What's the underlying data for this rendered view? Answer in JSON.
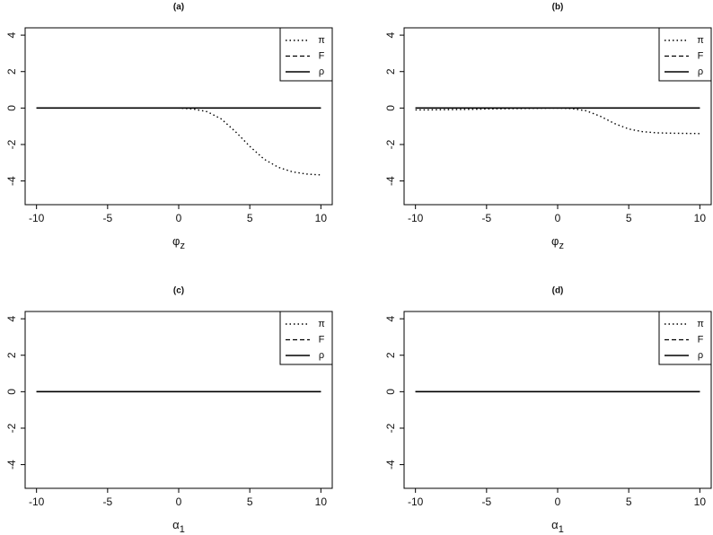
{
  "chart_data": [
    {
      "type": "line",
      "title": "(a)",
      "xlabel": [
        "φ",
        "z"
      ],
      "x": [
        -10,
        -9,
        -8,
        -7,
        -6,
        -5,
        -4,
        -3,
        -2,
        -1,
        0,
        1,
        2,
        3,
        4,
        5,
        6,
        7,
        8,
        9,
        10
      ],
      "series": [
        {
          "name": "π",
          "color": "#000000",
          "linestyle": "dotted",
          "values": [
            0,
            0,
            0,
            0,
            0,
            0,
            0,
            0,
            0,
            0,
            0,
            -0.05,
            -0.2,
            -0.6,
            -1.3,
            -2.1,
            -2.8,
            -3.25,
            -3.5,
            -3.62,
            -3.67
          ]
        },
        {
          "name": "F",
          "color": "#000000",
          "linestyle": "dashed",
          "values": [
            0,
            0,
            0,
            0,
            0,
            0,
            0,
            0,
            0,
            0,
            0,
            0,
            0,
            0,
            0,
            0,
            0,
            0,
            0,
            0,
            0
          ]
        },
        {
          "name": "ρ",
          "color": "#000000",
          "linestyle": "solid",
          "values": [
            0,
            0,
            0,
            0,
            0,
            0,
            0,
            0,
            0,
            0,
            0,
            0,
            0,
            0,
            0,
            0,
            0,
            0,
            0,
            0,
            0
          ]
        }
      ],
      "xlim": [
        -10.8,
        10.8
      ],
      "xticks": [
        -10,
        -5,
        0,
        5,
        10
      ],
      "ylim": [
        -5.3,
        4.4
      ],
      "yticks": [
        -4,
        -2,
        0,
        2,
        4
      ],
      "legend": "topright"
    },
    {
      "type": "line",
      "title": "(b)",
      "xlabel": [
        "φ",
        "z"
      ],
      "x": [
        -10,
        -9,
        -8,
        -7,
        -6,
        -5,
        -4,
        -3,
        -2,
        -1,
        0,
        1,
        2,
        3,
        4,
        5,
        6,
        7,
        8,
        9,
        10
      ],
      "series": [
        {
          "name": "π",
          "color": "#000000",
          "linestyle": "dotted",
          "values": [
            -0.1,
            -0.1,
            -0.09,
            -0.08,
            -0.07,
            -0.05,
            -0.04,
            -0.03,
            -0.02,
            -0.01,
            0,
            -0.03,
            -0.15,
            -0.45,
            -0.85,
            -1.15,
            -1.3,
            -1.36,
            -1.38,
            -1.39,
            -1.4
          ]
        },
        {
          "name": "F",
          "color": "#000000",
          "linestyle": "dashed",
          "values": [
            0,
            0,
            0,
            0,
            0,
            0,
            0,
            0,
            0,
            0,
            0,
            0,
            0,
            0,
            0,
            0,
            0,
            0,
            0,
            0,
            0
          ]
        },
        {
          "name": "ρ",
          "color": "#000000",
          "linestyle": "solid",
          "values": [
            0,
            0,
            0,
            0,
            0,
            0,
            0,
            0,
            0,
            0,
            0,
            0,
            0,
            0,
            0,
            0,
            0,
            0,
            0,
            0,
            0
          ]
        }
      ],
      "xlim": [
        -10.8,
        10.8
      ],
      "xticks": [
        -10,
        -5,
        0,
        5,
        10
      ],
      "ylim": [
        -5.3,
        4.4
      ],
      "yticks": [
        -4,
        -2,
        0,
        2,
        4
      ],
      "legend": "topright"
    },
    {
      "type": "line",
      "title": "(c)",
      "xlabel": [
        "α",
        "1"
      ],
      "x": [
        -10,
        -9,
        -8,
        -7,
        -6,
        -5,
        -4,
        -3,
        -2,
        -1,
        0,
        1,
        2,
        3,
        4,
        5,
        6,
        7,
        8,
        9,
        10
      ],
      "series": [
        {
          "name": "π",
          "color": "#000000",
          "linestyle": "dotted",
          "values": [
            0,
            0,
            0,
            0,
            0,
            0,
            0,
            0,
            0,
            0,
            0,
            0,
            0,
            0,
            0,
            0,
            0,
            0,
            0,
            0,
            0
          ]
        },
        {
          "name": "F",
          "color": "#000000",
          "linestyle": "dashed",
          "values": [
            0,
            0,
            0,
            0,
            0,
            0,
            0,
            0,
            0,
            0,
            0,
            0,
            0,
            0,
            0,
            0,
            0,
            0,
            0,
            0,
            0
          ]
        },
        {
          "name": "ρ",
          "color": "#000000",
          "linestyle": "solid",
          "values": [
            0,
            0,
            0,
            0,
            0,
            0,
            0,
            0,
            0,
            0,
            0,
            0,
            0,
            0,
            0,
            0,
            0,
            0,
            0,
            0,
            0
          ]
        }
      ],
      "xlim": [
        -10.8,
        10.8
      ],
      "xticks": [
        -10,
        -5,
        0,
        5,
        10
      ],
      "ylim": [
        -5.3,
        4.4
      ],
      "yticks": [
        -4,
        -2,
        0,
        2,
        4
      ],
      "legend": "topright"
    },
    {
      "type": "line",
      "title": "(d)",
      "xlabel": [
        "α",
        "1"
      ],
      "x": [
        -10,
        -9,
        -8,
        -7,
        -6,
        -5,
        -4,
        -3,
        -2,
        -1,
        0,
        1,
        2,
        3,
        4,
        5,
        6,
        7,
        8,
        9,
        10
      ],
      "series": [
        {
          "name": "π",
          "color": "#000000",
          "linestyle": "dotted",
          "values": [
            0,
            0,
            0,
            0,
            0,
            0,
            0,
            0,
            0,
            0,
            0,
            0,
            0,
            0,
            0,
            0,
            0,
            0,
            0,
            0,
            0
          ]
        },
        {
          "name": "F",
          "color": "#000000",
          "linestyle": "dashed",
          "values": [
            0,
            0,
            0,
            0,
            0,
            0,
            0,
            0,
            0,
            0,
            0,
            0,
            0,
            0,
            0,
            0,
            0,
            0,
            0,
            0,
            0
          ]
        },
        {
          "name": "ρ",
          "color": "#000000",
          "linestyle": "solid",
          "values": [
            0,
            0,
            0,
            0,
            0,
            0,
            0,
            0,
            0,
            0,
            0,
            0,
            0,
            0,
            0,
            0,
            0,
            0,
            0,
            0,
            0
          ]
        }
      ],
      "xlim": [
        -10.8,
        10.8
      ],
      "xticks": [
        -10,
        -5,
        0,
        5,
        10
      ],
      "ylim": [
        -5.3,
        4.4
      ],
      "yticks": [
        -4,
        -2,
        0,
        2,
        4
      ],
      "legend": "topright"
    }
  ]
}
